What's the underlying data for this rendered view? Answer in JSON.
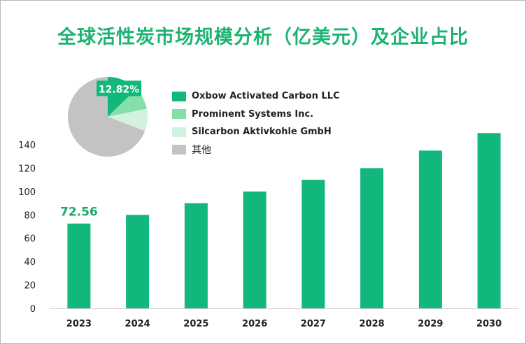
{
  "title": "全球活性炭市场规模分析（亿美元）及企业占比",
  "colors": {
    "bar": "#12b87b",
    "label": "#1aa86c",
    "axis_text": "#222222",
    "pie": [
      "#12b87b",
      "#86dea9",
      "#d2f2df",
      "#c3c3c3"
    ]
  },
  "legend": {
    "items": [
      {
        "label": "Oxbow Activated Carbon LLC",
        "color": "#12b87b"
      },
      {
        "label": "Prominent Systems Inc.",
        "color": "#86dea9"
      },
      {
        "label": "Silcarbon Aktivkohle GmbH",
        "color": "#d2f2df"
      },
      {
        "label": "其他",
        "color": "#c3c3c3"
      }
    ]
  },
  "chart_data": [
    {
      "type": "bar",
      "categories": [
        "2023",
        "2024",
        "2025",
        "2026",
        "2027",
        "2028",
        "2029",
        "2030"
      ],
      "values": [
        72.56,
        80,
        90,
        100,
        110,
        120,
        135,
        150
      ],
      "ylim": [
        0,
        140
      ],
      "yticks": [
        "0",
        "20",
        "40",
        "60",
        "80",
        "100",
        "120",
        "140"
      ],
      "data_labels": [
        {
          "category": "2023",
          "text": "72.56"
        }
      ],
      "grid": false
    },
    {
      "type": "pie",
      "labels": [
        "Oxbow Activated Carbon LLC",
        "Prominent Systems Inc.",
        "Silcarbon Aktivkohle GmbH",
        "其他"
      ],
      "values": [
        12.82,
        9,
        9,
        69.18
      ],
      "data_labels": [
        {
          "label": "Oxbow Activated Carbon LLC",
          "text": "12.82%"
        }
      ]
    }
  ]
}
